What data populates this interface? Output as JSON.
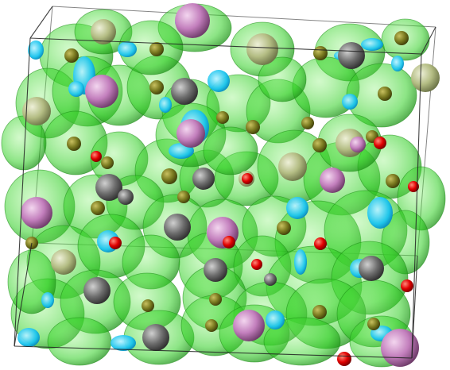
{
  "scene": {
    "background": "#ffffff",
    "frame_color": "#222222",
    "colors": {
      "isosurface_green": "#2fcf22",
      "isosurface_green_edge": "#1a8c14",
      "isosurface_cyan": "#19c4ee",
      "atom_olive": "#7a7a20",
      "atom_pale_olive": "#b4bd84",
      "atom_gray": "#6e6e6e",
      "atom_pink": "#c37fbd",
      "atom_red": "#e00000"
    }
  }
}
